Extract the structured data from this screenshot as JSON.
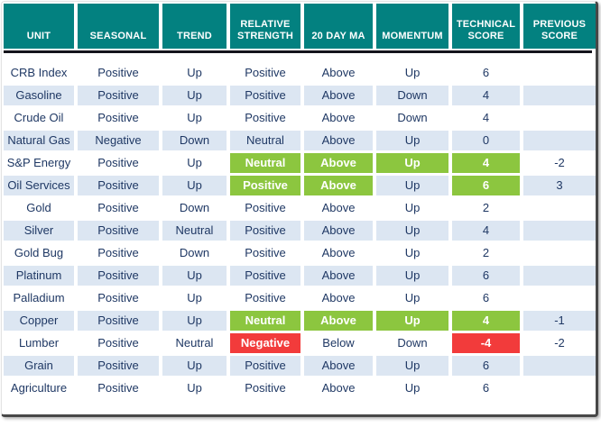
{
  "table": {
    "columns": [
      "UNIT",
      "SEASONAL",
      "TREND",
      "RELATIVE STRENGTH",
      "20 DAY MA",
      "MOMENTUM",
      "TECHNICAL SCORE",
      "PREVIOUS SCORE"
    ],
    "rows": [
      {
        "cells": [
          {
            "text": "CRB Index"
          },
          {
            "text": "Positive"
          },
          {
            "text": "Up"
          },
          {
            "text": "Positive"
          },
          {
            "text": "Above"
          },
          {
            "text": "Up"
          },
          {
            "text": "6"
          },
          {
            "text": ""
          }
        ]
      },
      {
        "cells": [
          {
            "text": "Gasoline"
          },
          {
            "text": "Positive"
          },
          {
            "text": "Up"
          },
          {
            "text": "Positive"
          },
          {
            "text": "Above"
          },
          {
            "text": "Down"
          },
          {
            "text": "4"
          },
          {
            "text": ""
          }
        ]
      },
      {
        "cells": [
          {
            "text": "Crude Oil"
          },
          {
            "text": "Positive"
          },
          {
            "text": "Up"
          },
          {
            "text": "Positive"
          },
          {
            "text": "Above"
          },
          {
            "text": "Down"
          },
          {
            "text": "4"
          },
          {
            "text": ""
          }
        ]
      },
      {
        "cells": [
          {
            "text": "Natural Gas"
          },
          {
            "text": "Negative"
          },
          {
            "text": "Down"
          },
          {
            "text": "Neutral"
          },
          {
            "text": "Above"
          },
          {
            "text": "Up"
          },
          {
            "text": "0"
          },
          {
            "text": ""
          }
        ]
      },
      {
        "cells": [
          {
            "text": "S&P Energy"
          },
          {
            "text": "Positive"
          },
          {
            "text": "Up"
          },
          {
            "text": "Neutral",
            "hl": "green"
          },
          {
            "text": "Above",
            "hl": "green"
          },
          {
            "text": "Up",
            "hl": "green"
          },
          {
            "text": "4",
            "hl": "green"
          },
          {
            "text": "-2"
          }
        ]
      },
      {
        "cells": [
          {
            "text": "Oil Services"
          },
          {
            "text": "Positive"
          },
          {
            "text": "Up"
          },
          {
            "text": "Positive",
            "hl": "green"
          },
          {
            "text": "Above",
            "hl": "green"
          },
          {
            "text": "Up"
          },
          {
            "text": "6",
            "hl": "green"
          },
          {
            "text": "3"
          }
        ]
      },
      {
        "cells": [
          {
            "text": "Gold"
          },
          {
            "text": "Positive"
          },
          {
            "text": "Down"
          },
          {
            "text": "Positive"
          },
          {
            "text": "Above"
          },
          {
            "text": "Up"
          },
          {
            "text": "2"
          },
          {
            "text": ""
          }
        ]
      },
      {
        "cells": [
          {
            "text": "Silver"
          },
          {
            "text": "Positive"
          },
          {
            "text": "Neutral"
          },
          {
            "text": "Positive"
          },
          {
            "text": "Above"
          },
          {
            "text": "Up"
          },
          {
            "text": "4"
          },
          {
            "text": ""
          }
        ]
      },
      {
        "cells": [
          {
            "text": "Gold Bug"
          },
          {
            "text": "Positive"
          },
          {
            "text": "Down"
          },
          {
            "text": "Positive"
          },
          {
            "text": "Above"
          },
          {
            "text": "Up"
          },
          {
            "text": "2"
          },
          {
            "text": ""
          }
        ]
      },
      {
        "cells": [
          {
            "text": "Platinum"
          },
          {
            "text": "Positive"
          },
          {
            "text": "Up"
          },
          {
            "text": "Positive"
          },
          {
            "text": "Above"
          },
          {
            "text": "Up"
          },
          {
            "text": "6"
          },
          {
            "text": ""
          }
        ]
      },
      {
        "cells": [
          {
            "text": "Palladium"
          },
          {
            "text": "Positive"
          },
          {
            "text": "Up"
          },
          {
            "text": "Positive"
          },
          {
            "text": "Above"
          },
          {
            "text": "Up"
          },
          {
            "text": "6"
          },
          {
            "text": ""
          }
        ]
      },
      {
        "cells": [
          {
            "text": "Copper"
          },
          {
            "text": "Positive"
          },
          {
            "text": "Up"
          },
          {
            "text": "Neutral",
            "hl": "green"
          },
          {
            "text": "Above",
            "hl": "green"
          },
          {
            "text": "Up",
            "hl": "green"
          },
          {
            "text": "4",
            "hl": "green"
          },
          {
            "text": "-1"
          }
        ]
      },
      {
        "cells": [
          {
            "text": "Lumber"
          },
          {
            "text": "Positive"
          },
          {
            "text": "Neutral"
          },
          {
            "text": "Negative",
            "hl": "red"
          },
          {
            "text": "Below"
          },
          {
            "text": "Down"
          },
          {
            "text": "-4",
            "hl": "red"
          },
          {
            "text": "-2"
          }
        ]
      },
      {
        "cells": [
          {
            "text": "Grain"
          },
          {
            "text": "Positive"
          },
          {
            "text": "Up"
          },
          {
            "text": "Positive"
          },
          {
            "text": "Above"
          },
          {
            "text": "Up"
          },
          {
            "text": "6"
          },
          {
            "text": ""
          }
        ]
      },
      {
        "cells": [
          {
            "text": "Agriculture"
          },
          {
            "text": "Positive"
          },
          {
            "text": "Up"
          },
          {
            "text": "Positive"
          },
          {
            "text": "Above"
          },
          {
            "text": "Up"
          },
          {
            "text": "6"
          },
          {
            "text": ""
          }
        ]
      }
    ]
  },
  "colors": {
    "header_bg": "#038180",
    "header_text": "#ffffff",
    "stripe_bg": "#DCE6F2",
    "body_text": "#1F3864",
    "highlight_green": "#8CC63F",
    "highlight_red": "#F23B3B",
    "divider": "#14141c"
  }
}
